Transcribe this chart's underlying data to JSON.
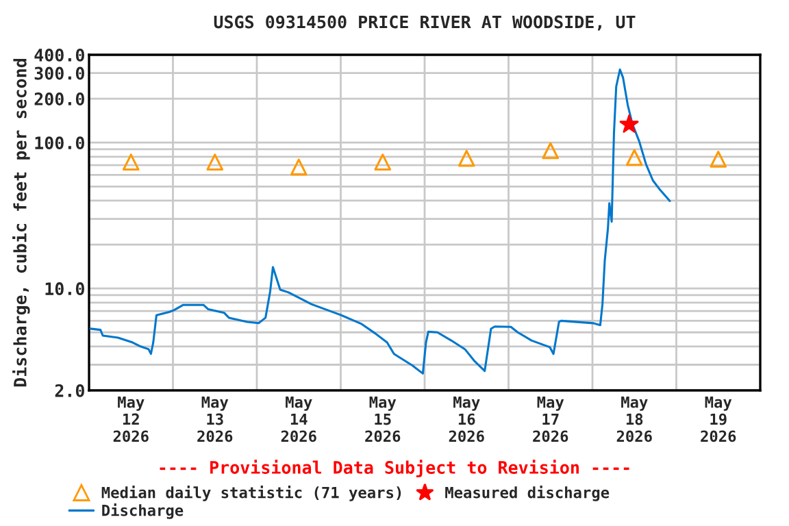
{
  "chart_data": {
    "type": "line",
    "title": "USGS 09314500 PRICE RIVER AT WOODSIDE, UT",
    "ylabel": "Discharge, cubic feet per second",
    "annotations": [
      "---- Provisional Data Subject to Revision ----"
    ],
    "log": "y",
    "grid": true,
    "legend": "bottom",
    "xlim": [
      "2026-05-12T00:00",
      "2026-05-20T00:00"
    ],
    "xticks": [
      {
        "value": "2026-05-12T00:00",
        "label": null
      },
      {
        "value": "2026-05-13T00:00",
        "label": null
      },
      {
        "value": "2026-05-14T00:00",
        "label": null
      },
      {
        "value": "2026-05-15T00:00",
        "label": null
      },
      {
        "value": "2026-05-16T00:00",
        "label": null
      },
      {
        "value": "2026-05-17T00:00",
        "label": null
      },
      {
        "value": "2026-05-18T00:00",
        "label": null
      },
      {
        "value": "2026-05-19T00:00",
        "label": null
      },
      {
        "value": "2026-05-20T00:00",
        "label": null
      },
      {
        "value": "2026-05-12T12:00",
        "label": "May\n12\n2026"
      },
      {
        "value": "2026-05-13T12:00",
        "label": "May\n13\n2026"
      },
      {
        "value": "2026-05-14T12:00",
        "label": "May\n14\n2026"
      },
      {
        "value": "2026-05-15T12:00",
        "label": "May\n15\n2026"
      },
      {
        "value": "2026-05-16T12:00",
        "label": "May\n16\n2026"
      },
      {
        "value": "2026-05-17T12:00",
        "label": "May\n17\n2026"
      },
      {
        "value": "2026-05-18T12:00",
        "label": "May\n18\n2026"
      },
      {
        "value": "2026-05-19T12:00",
        "label": "May\n19\n2026"
      }
    ],
    "ylim": [
      2,
      400
    ],
    "yticks": [
      {
        "value": 2,
        "label": "2.0"
      },
      {
        "value": 3,
        "label": null
      },
      {
        "value": 4,
        "label": null
      },
      {
        "value": 5,
        "label": null
      },
      {
        "value": 6,
        "label": null
      },
      {
        "value": 7,
        "label": null
      },
      {
        "value": 8,
        "label": null
      },
      {
        "value": 9,
        "label": null
      },
      {
        "value": 10,
        "label": "10.0"
      },
      {
        "value": 20,
        "label": null
      },
      {
        "value": 30,
        "label": null
      },
      {
        "value": 40,
        "label": null
      },
      {
        "value": 50,
        "label": null
      },
      {
        "value": 60,
        "label": null
      },
      {
        "value": 70,
        "label": null
      },
      {
        "value": 80,
        "label": null
      },
      {
        "value": 90,
        "label": null
      },
      {
        "value": 100,
        "label": "100.0"
      },
      {
        "value": 200,
        "label": "200.0"
      },
      {
        "value": 300,
        "label": "300.0"
      },
      {
        "value": 400,
        "label": "400.0"
      }
    ],
    "series": [
      {
        "name": "Median daily statistic (71 years)",
        "type": "scatter",
        "marker": "triangle",
        "color": "#ff9900",
        "x": [
          "2026-05-12T12:00",
          "2026-05-13T12:00",
          "2026-05-14T12:00",
          "2026-05-15T12:00",
          "2026-05-16T12:00",
          "2026-05-17T12:00",
          "2026-05-18T12:00",
          "2026-05-19T12:00"
        ],
        "values": [
          73.5,
          73.5,
          68,
          73.5,
          78,
          88,
          79,
          77
        ]
      },
      {
        "name": "Measured discharge",
        "type": "scatter",
        "marker": "star",
        "color": "#ff0000",
        "x": [
          "2026-05-18T10:30"
        ],
        "values": [
          133
        ]
      },
      {
        "name": "Discharge",
        "marker": "none",
        "color": "#0077cc",
        "x": [
          "2026-05-12T00:24",
          "2026-05-12T03:16",
          "2026-05-12T03:56",
          "2026-05-12T08:16",
          "2026-05-12T12:28",
          "2026-05-12T14:26",
          "2026-05-12T17:02",
          "2026-05-12T17:42",
          "2026-05-12T18:22",
          "2026-05-12T19:17",
          "2026-05-12T22:56",
          "2026-05-13T00:17",
          "2026-05-13T02:52",
          "2026-05-13T08:46",
          "2026-05-13T10:07",
          "2026-05-13T14:41",
          "2026-05-13T16:00",
          "2026-05-13T21:15",
          "2026-05-14T00:31",
          "2026-05-14T02:29",
          "2026-05-14T03:49",
          "2026-05-14T04:36",
          "2026-05-14T06:41",
          "2026-05-14T09:03",
          "2026-05-14T15:37",
          "2026-05-15T00:07",
          "2026-05-15T06:01",
          "2026-05-15T09:57",
          "2026-05-15T13:16",
          "2026-05-15T15:14",
          "2026-05-15T20:28",
          "2026-05-15T23:29",
          "2026-05-16T00:23",
          "2026-05-16T01:04",
          "2026-05-16T03:39",
          "2026-05-16T07:36",
          "2026-05-16T11:32",
          "2026-05-16T14:09",
          "2026-05-16T17:11",
          "2026-05-16T18:59",
          "2026-05-16T20:04",
          "2026-05-17T00:40",
          "2026-05-17T02:38",
          "2026-05-17T06:34",
          "2026-05-17T11:48",
          "2026-05-17T12:51",
          "2026-05-17T14:26",
          "2026-05-17T15:04",
          "2026-05-18T00:16",
          "2026-05-18T02:14",
          "2026-05-18T02:52",
          "2026-05-18T03:32",
          "2026-05-18T04:26",
          "2026-05-18T04:50",
          "2026-05-18T05:30",
          "2026-05-18T06:10",
          "2026-05-18T06:48",
          "2026-05-18T07:52",
          "2026-05-18T08:46",
          "2026-05-18T10:06",
          "2026-05-18T11:24",
          "2026-05-18T13:23",
          "2026-05-18T15:20",
          "2026-05-18T17:18",
          "2026-05-18T19:17",
          "2026-05-18T22:09"
        ],
        "values": [
          5.3,
          5.2,
          4.75,
          4.6,
          4.26,
          4.03,
          3.83,
          3.56,
          4.26,
          6.56,
          6.9,
          7.1,
          7.7,
          7.7,
          7.2,
          6.8,
          6.3,
          5.9,
          5.78,
          6.3,
          9.55,
          14.0,
          9.8,
          9.4,
          7.8,
          6.56,
          5.7,
          4.9,
          4.26,
          3.56,
          2.97,
          2.61,
          4.26,
          5.06,
          5.0,
          4.4,
          3.83,
          3.2,
          2.72,
          5.29,
          5.48,
          5.45,
          5.0,
          4.4,
          3.96,
          3.56,
          5.9,
          6.0,
          5.78,
          5.6,
          7.8,
          15.6,
          25.8,
          38.4,
          28.7,
          117,
          242,
          317,
          278,
          181,
          135,
          102,
          71,
          55,
          47.6,
          39.8
        ]
      }
    ]
  }
}
